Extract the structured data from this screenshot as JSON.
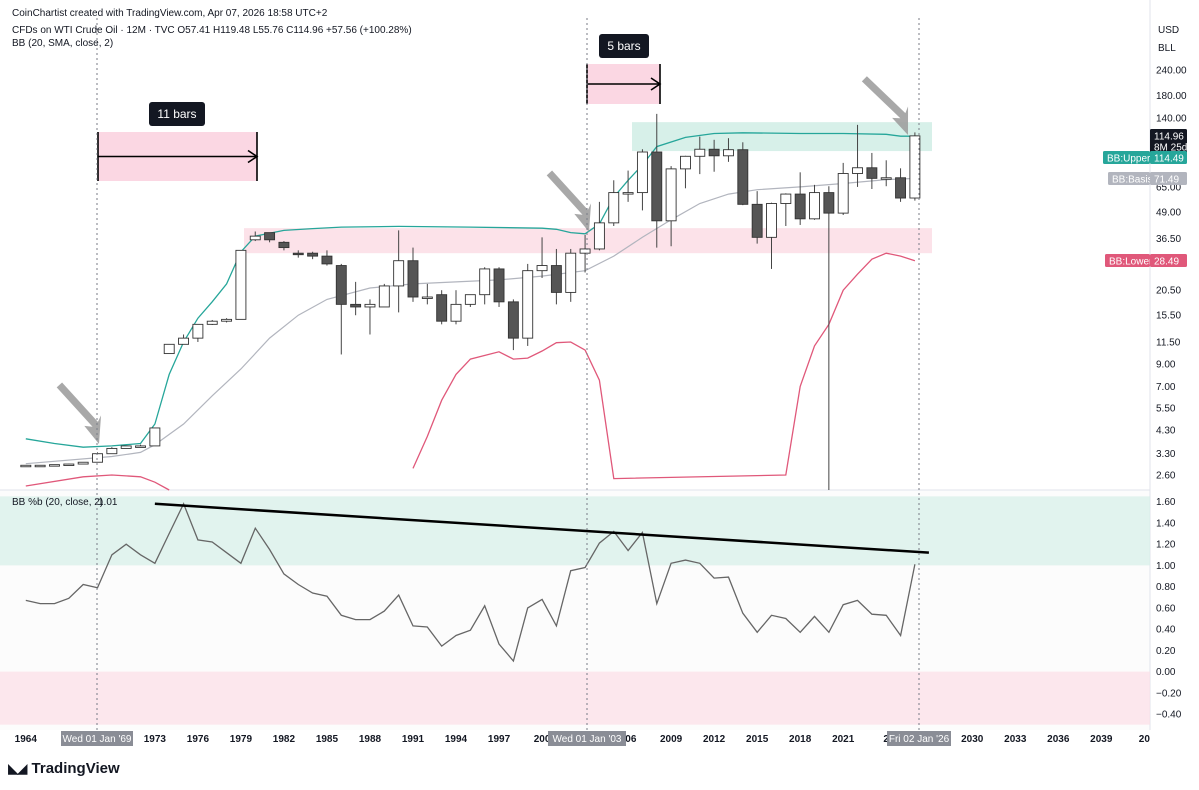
{
  "header": {
    "credit": "CoinChartist created with TradingView.com, Apr 07, 2026 18:58 UTC+2",
    "symbol_line": "CFDs on WTI Crude Oil · 12M · TVC  O57.41  H119.48  L55.76  C114.96  +57.56 (+100.28%)",
    "indicator_line": "BB (20, SMA, close, 2)",
    "currency": "USD",
    "unit": "BLL"
  },
  "branding": {
    "name": "TradingView",
    "icon": "tradingview-logo-icon"
  },
  "colors": {
    "upper": "#26a69a",
    "basis": "#b2b5be",
    "lower": "#e0587a",
    "green_zone": "#d5efe8",
    "pink_zone": "#fce0e8",
    "candle_down": "#555555",
    "annot_pink": "#f8bdd0",
    "arrow_gray": "#9e9e9e"
  },
  "price_badges": {
    "last": "114.96",
    "countdown": "8M 25d",
    "upper_label": "BB:Upper",
    "upper_value": "114.49",
    "basis_label": "BB:Basis",
    "basis_value": "71.49",
    "lower_label": "BB:Lower",
    "lower_value": "28.49"
  },
  "annotations": {
    "bars1": "11 bars",
    "bars2": "5 bars"
  },
  "crosshair_labels": [
    "Wed 01 Jan '69",
    "Wed 01 Jan '03",
    "Fri 02 Jan '26"
  ],
  "chart_data": [
    {
      "type": "candlestick",
      "title": "CFDs on WTI Crude Oil · 12M · TVC",
      "y_scale": "log",
      "y_ticks": [
        240.0,
        180.0,
        140.0,
        110.0,
        85.0,
        65.0,
        49.0,
        36.5,
        27.5,
        20.5,
        15.5,
        11.5,
        9.0,
        7.0,
        5.5,
        4.3,
        3.3,
        2.6
      ],
      "y_tick_labels": [
        "240.00",
        "180.00",
        "140.00",
        "",
        "",
        "65.00",
        "49.00",
        "36.50",
        "",
        "20.50",
        "15.50",
        "11.50",
        "9.00",
        "7.00",
        "5.50",
        "4.30",
        "3.30",
        "2.60"
      ],
      "x_ticks": [
        "1964",
        "1967",
        "1970",
        "1973",
        "1976",
        "1979",
        "1982",
        "1985",
        "1988",
        "1991",
        "1994",
        "1997",
        "2000",
        "2003",
        "2006",
        "2009",
        "2012",
        "2015",
        "2018",
        "2021",
        "2024",
        "2027",
        "2030",
        "2033",
        "2036",
        "2039",
        "2042"
      ],
      "x_tick_labels": [
        "1964",
        "",
        "",
        "1973",
        "1976",
        "1979",
        "1982",
        "1985",
        "1988",
        "1991",
        "1994",
        "1997",
        "200",
        "",
        "006",
        "2009",
        "2012",
        "2015",
        "2018",
        "2021",
        "2",
        "",
        "2030",
        "2033",
        "2036",
        "2039",
        "20"
      ],
      "candles": [
        {
          "year": 1964,
          "o": 2.9,
          "h": 2.9,
          "l": 2.9,
          "c": 2.9
        },
        {
          "year": 1965,
          "o": 2.9,
          "h": 2.9,
          "l": 2.9,
          "c": 2.9
        },
        {
          "year": 1966,
          "o": 2.9,
          "h": 2.92,
          "l": 2.9,
          "c": 2.92
        },
        {
          "year": 1967,
          "o": 2.92,
          "h": 2.95,
          "l": 2.92,
          "c": 2.94
        },
        {
          "year": 1968,
          "o": 2.94,
          "h": 3.0,
          "l": 2.94,
          "c": 3.0
        },
        {
          "year": 1969,
          "o": 3.0,
          "h": 3.35,
          "l": 3.0,
          "c": 3.3
        },
        {
          "year": 1970,
          "o": 3.3,
          "h": 3.55,
          "l": 3.3,
          "c": 3.5
        },
        {
          "year": 1971,
          "o": 3.5,
          "h": 3.6,
          "l": 3.5,
          "c": 3.6
        },
        {
          "year": 1972,
          "o": 3.6,
          "h": 3.65,
          "l": 3.6,
          "c": 3.6
        },
        {
          "year": 1973,
          "o": 3.6,
          "h": 4.4,
          "l": 3.6,
          "c": 4.4
        },
        {
          "year": 1974,
          "o": 10.1,
          "h": 11.2,
          "l": 10.1,
          "c": 11.2
        },
        {
          "year": 1975,
          "o": 11.2,
          "h": 12.5,
          "l": 11.2,
          "c": 12.0
        },
        {
          "year": 1976,
          "o": 12.0,
          "h": 14.0,
          "l": 11.5,
          "c": 14.0
        },
        {
          "year": 1977,
          "o": 14.0,
          "h": 14.7,
          "l": 13.9,
          "c": 14.5
        },
        {
          "year": 1978,
          "o": 14.5,
          "h": 15.0,
          "l": 14.3,
          "c": 14.8
        },
        {
          "year": 1979,
          "o": 14.8,
          "h": 32.0,
          "l": 14.8,
          "c": 32.0
        },
        {
          "year": 1980,
          "o": 36.0,
          "h": 39.5,
          "l": 35.5,
          "c": 37.5
        },
        {
          "year": 1981,
          "o": 39.0,
          "h": 39.0,
          "l": 35.0,
          "c": 36.0
        },
        {
          "year": 1982,
          "o": 35.0,
          "h": 35.5,
          "l": 32.0,
          "c": 33.0
        },
        {
          "year": 1983,
          "o": 31.0,
          "h": 32.0,
          "l": 29.5,
          "c": 30.5
        },
        {
          "year": 1984,
          "o": 31.0,
          "h": 31.5,
          "l": 29.0,
          "c": 30.0
        },
        {
          "year": 1985,
          "o": 30.0,
          "h": 32.0,
          "l": 27.0,
          "c": 27.5
        },
        {
          "year": 1986,
          "o": 27.0,
          "h": 27.5,
          "l": 10.0,
          "c": 17.5
        },
        {
          "year": 1987,
          "o": 17.5,
          "h": 22.5,
          "l": 15.5,
          "c": 17.0
        },
        {
          "year": 1988,
          "o": 17.0,
          "h": 18.5,
          "l": 12.5,
          "c": 17.5
        },
        {
          "year": 1989,
          "o": 17.0,
          "h": 22.0,
          "l": 17.0,
          "c": 21.5
        },
        {
          "year": 1990,
          "o": 21.5,
          "h": 40.0,
          "l": 16.0,
          "c": 28.5
        },
        {
          "year": 1991,
          "o": 28.5,
          "h": 33.0,
          "l": 18.0,
          "c": 19.0
        },
        {
          "year": 1992,
          "o": 19.0,
          "h": 22.0,
          "l": 17.5,
          "c": 19.0
        },
        {
          "year": 1993,
          "o": 19.5,
          "h": 20.5,
          "l": 14.0,
          "c": 14.5
        },
        {
          "year": 1994,
          "o": 14.5,
          "h": 20.5,
          "l": 14.0,
          "c": 17.5
        },
        {
          "year": 1995,
          "o": 17.5,
          "h": 19.5,
          "l": 17.0,
          "c": 19.5
        },
        {
          "year": 1996,
          "o": 19.5,
          "h": 26.5,
          "l": 17.5,
          "c": 26.0
        },
        {
          "year": 1997,
          "o": 26.0,
          "h": 26.5,
          "l": 17.0,
          "c": 18.0
        },
        {
          "year": 1998,
          "o": 18.0,
          "h": 18.5,
          "l": 10.5,
          "c": 12.0
        },
        {
          "year": 1999,
          "o": 12.0,
          "h": 27.5,
          "l": 11.0,
          "c": 25.5
        },
        {
          "year": 2000,
          "o": 25.5,
          "h": 37.0,
          "l": 23.5,
          "c": 27.0
        },
        {
          "year": 2001,
          "o": 27.0,
          "h": 32.5,
          "l": 17.5,
          "c": 20.0
        },
        {
          "year": 2002,
          "o": 20.0,
          "h": 32.5,
          "l": 18.0,
          "c": 31.0
        },
        {
          "year": 2003,
          "o": 31.0,
          "h": 38.0,
          "l": 25.0,
          "c": 32.5
        },
        {
          "year": 2004,
          "o": 32.5,
          "h": 55.0,
          "l": 32.0,
          "c": 43.5
        },
        {
          "year": 2005,
          "o": 43.5,
          "h": 70.0,
          "l": 42.0,
          "c": 61.0
        },
        {
          "year": 2006,
          "o": 61.0,
          "h": 78.0,
          "l": 55.0,
          "c": 61.0
        },
        {
          "year": 2007,
          "o": 61.0,
          "h": 99.0,
          "l": 50.0,
          "c": 96.0
        },
        {
          "year": 2008,
          "o": 96.0,
          "h": 147.0,
          "l": 33.0,
          "c": 44.5
        },
        {
          "year": 2009,
          "o": 44.5,
          "h": 82.0,
          "l": 33.5,
          "c": 79.5
        },
        {
          "year": 2010,
          "o": 79.5,
          "h": 92.0,
          "l": 64.0,
          "c": 91.5
        },
        {
          "year": 2011,
          "o": 91.5,
          "h": 114.0,
          "l": 75.0,
          "c": 99.0
        },
        {
          "year": 2012,
          "o": 99.0,
          "h": 110.0,
          "l": 77.0,
          "c": 92.0
        },
        {
          "year": 2013,
          "o": 92.0,
          "h": 112.0,
          "l": 86.0,
          "c": 98.5
        },
        {
          "year": 2014,
          "o": 98.5,
          "h": 107.0,
          "l": 53.0,
          "c": 53.5
        },
        {
          "year": 2015,
          "o": 53.5,
          "h": 62.0,
          "l": 34.5,
          "c": 37.0
        },
        {
          "year": 2016,
          "o": 37.0,
          "h": 54.5,
          "l": 26.0,
          "c": 54.0
        },
        {
          "year": 2017,
          "o": 54.0,
          "h": 60.5,
          "l": 42.0,
          "c": 60.0
        },
        {
          "year": 2018,
          "o": 60.0,
          "h": 76.5,
          "l": 42.5,
          "c": 45.5
        },
        {
          "year": 2019,
          "o": 45.5,
          "h": 66.5,
          "l": 45.0,
          "c": 61.0
        },
        {
          "year": 2020,
          "o": 61.0,
          "h": 65.5,
          "l": 0.5,
          "c": 48.5
        },
        {
          "year": 2021,
          "o": 48.5,
          "h": 85.0,
          "l": 47.5,
          "c": 75.5
        },
        {
          "year": 2022,
          "o": 75.5,
          "h": 130.0,
          "l": 65.0,
          "c": 80.5
        },
        {
          "year": 2023,
          "o": 80.5,
          "h": 95.0,
          "l": 63.5,
          "c": 71.5
        },
        {
          "year": 2024,
          "o": 71.5,
          "h": 87.5,
          "l": 65.5,
          "c": 72.0
        },
        {
          "year": 2025,
          "o": 72.0,
          "h": 80.0,
          "l": 55.0,
          "c": 57.4
        },
        {
          "year": 2026,
          "o": 57.41,
          "h": 119.48,
          "l": 55.76,
          "c": 114.96
        }
      ],
      "bb_upper": [
        [
          1964,
          3.9
        ],
        [
          1966,
          3.7
        ],
        [
          1968,
          3.55
        ],
        [
          1970,
          3.6
        ],
        [
          1972,
          3.7
        ],
        [
          1973,
          4.6
        ],
        [
          1974,
          8.0
        ],
        [
          1975,
          11.5
        ],
        [
          1976,
          15.0
        ],
        [
          1977,
          18.0
        ],
        [
          1978,
          22.0
        ],
        [
          1979,
          31.5
        ],
        [
          1980,
          37.5
        ],
        [
          1982,
          40.0
        ],
        [
          1984,
          40.8
        ],
        [
          1986,
          41.5
        ],
        [
          1990,
          41.8
        ],
        [
          1995,
          41.5
        ],
        [
          2000,
          41.0
        ],
        [
          2001,
          40.5
        ],
        [
          2002,
          39.0
        ],
        [
          2003,
          38.5
        ],
        [
          2004,
          43.0
        ],
        [
          2005,
          58.0
        ],
        [
          2006,
          70.0
        ],
        [
          2007,
          83.0
        ],
        [
          2008,
          102.0
        ],
        [
          2010,
          113.0
        ],
        [
          2012,
          118.0
        ],
        [
          2014,
          119.0
        ],
        [
          2018,
          118.0
        ],
        [
          2021,
          118.0
        ],
        [
          2024,
          117.0
        ],
        [
          2025,
          114.5
        ],
        [
          2026,
          114.49
        ]
      ],
      "bb_basis": [
        [
          1964,
          2.95
        ],
        [
          1970,
          3.2
        ],
        [
          1972,
          3.35
        ],
        [
          1973,
          3.65
        ],
        [
          1975,
          4.6
        ],
        [
          1977,
          6.3
        ],
        [
          1979,
          8.5
        ],
        [
          1981,
          12.0
        ],
        [
          1983,
          15.5
        ],
        [
          1985,
          18.5
        ],
        [
          1988,
          21.0
        ],
        [
          1991,
          22.0
        ],
        [
          1994,
          22.5
        ],
        [
          1997,
          23.0
        ],
        [
          2000,
          24.0
        ],
        [
          2003,
          25.5
        ],
        [
          2005,
          30.0
        ],
        [
          2007,
          37.0
        ],
        [
          2009,
          45.0
        ],
        [
          2011,
          54.0
        ],
        [
          2013,
          60.0
        ],
        [
          2015,
          63.0
        ],
        [
          2018,
          65.0
        ],
        [
          2021,
          67.5
        ],
        [
          2024,
          70.5
        ],
        [
          2026,
          71.49
        ]
      ],
      "bb_lower": [
        [
          1964,
          2.3
        ],
        [
          1968,
          2.55
        ],
        [
          1970,
          2.6
        ],
        [
          1972,
          2.55
        ],
        [
          1973,
          2.4
        ],
        [
          1974,
          1.5
        ],
        [
          1991,
          2.8
        ],
        [
          1992,
          4.0
        ],
        [
          1993,
          6.0
        ],
        [
          1994,
          8.0
        ],
        [
          1995,
          9.5
        ],
        [
          1997,
          10.3
        ],
        [
          1998,
          9.5
        ],
        [
          1999,
          9.6
        ],
        [
          2000,
          10.4
        ],
        [
          2001,
          11.4
        ],
        [
          2002,
          11.5
        ],
        [
          2003,
          10.5
        ],
        [
          2004,
          7.5
        ],
        [
          2005,
          2.5
        ],
        [
          2017,
          2.6
        ],
        [
          2018,
          7.0
        ],
        [
          2019,
          11.0
        ],
        [
          2020,
          14.0
        ],
        [
          2021,
          20.5
        ],
        [
          2022,
          24.5
        ],
        [
          2023,
          29.0
        ],
        [
          2024,
          31.0
        ],
        [
          2025,
          30.0
        ],
        [
          2026,
          28.49
        ]
      ],
      "bb_color_upper": "#26a69a",
      "bb_color_basis": "#b2b5be",
      "bb_color_lower": "#e0587a"
    },
    {
      "type": "line",
      "title": "BB %b (20, close, 2)",
      "value_label": "1.01",
      "ylim": [
        -0.5,
        1.65
      ],
      "y_ticks": [
        1.6,
        1.4,
        1.2,
        1.0,
        0.8,
        0.6,
        0.4,
        0.2,
        0.0,
        -0.2,
        -0.4
      ],
      "y_tick_labels": [
        "1.60",
        "1.40",
        "1.20",
        "1.00",
        "0.80",
        "0.60",
        "0.40",
        "0.20",
        "0.00",
        "−0.20",
        "−0.40"
      ],
      "zones": {
        "upper": [
          1.0,
          1.65
        ],
        "lower": [
          -0.5,
          0.0
        ]
      },
      "series": [
        {
          "x": [
            1964,
            1965,
            1966,
            1967,
            1968,
            1969,
            1970,
            1971,
            1972,
            1973,
            1974,
            1975,
            1976,
            1977,
            1978,
            1979,
            1980,
            1981,
            1982,
            1983,
            1984,
            1985,
            1986,
            1987,
            1988,
            1989,
            1990,
            1991,
            1992,
            1993,
            1994,
            1995,
            1996,
            1997,
            1998,
            1999,
            2000,
            2001,
            2002,
            2003,
            2004,
            2005,
            2006,
            2007,
            2008,
            2009,
            2010,
            2011,
            2012,
            2013,
            2014,
            2015,
            2016,
            2017,
            2018,
            2019,
            2020,
            2021,
            2022,
            2023,
            2024,
            2025,
            2026
          ],
          "values": [
            0.67,
            0.64,
            0.64,
            0.69,
            0.82,
            0.79,
            1.1,
            1.2,
            1.1,
            1.02,
            1.3,
            1.58,
            1.24,
            1.22,
            1.12,
            1.02,
            1.35,
            1.15,
            0.92,
            0.82,
            0.74,
            0.71,
            0.53,
            0.49,
            0.49,
            0.57,
            0.72,
            0.43,
            0.42,
            0.24,
            0.34,
            0.39,
            0.62,
            0.26,
            0.1,
            0.6,
            0.68,
            0.43,
            0.95,
            0.98,
            1.21,
            1.32,
            1.14,
            1.31,
            0.64,
            1.02,
            1.05,
            1.02,
            0.88,
            0.89,
            0.55,
            0.37,
            0.53,
            0.5,
            0.37,
            0.52,
            0.37,
            0.63,
            0.67,
            0.54,
            0.53,
            0.34,
            1.01
          ]
        }
      ],
      "trendline": {
        "from": [
          1973,
          1.58
        ],
        "to": [
          2026,
          1.15
        ]
      }
    }
  ]
}
